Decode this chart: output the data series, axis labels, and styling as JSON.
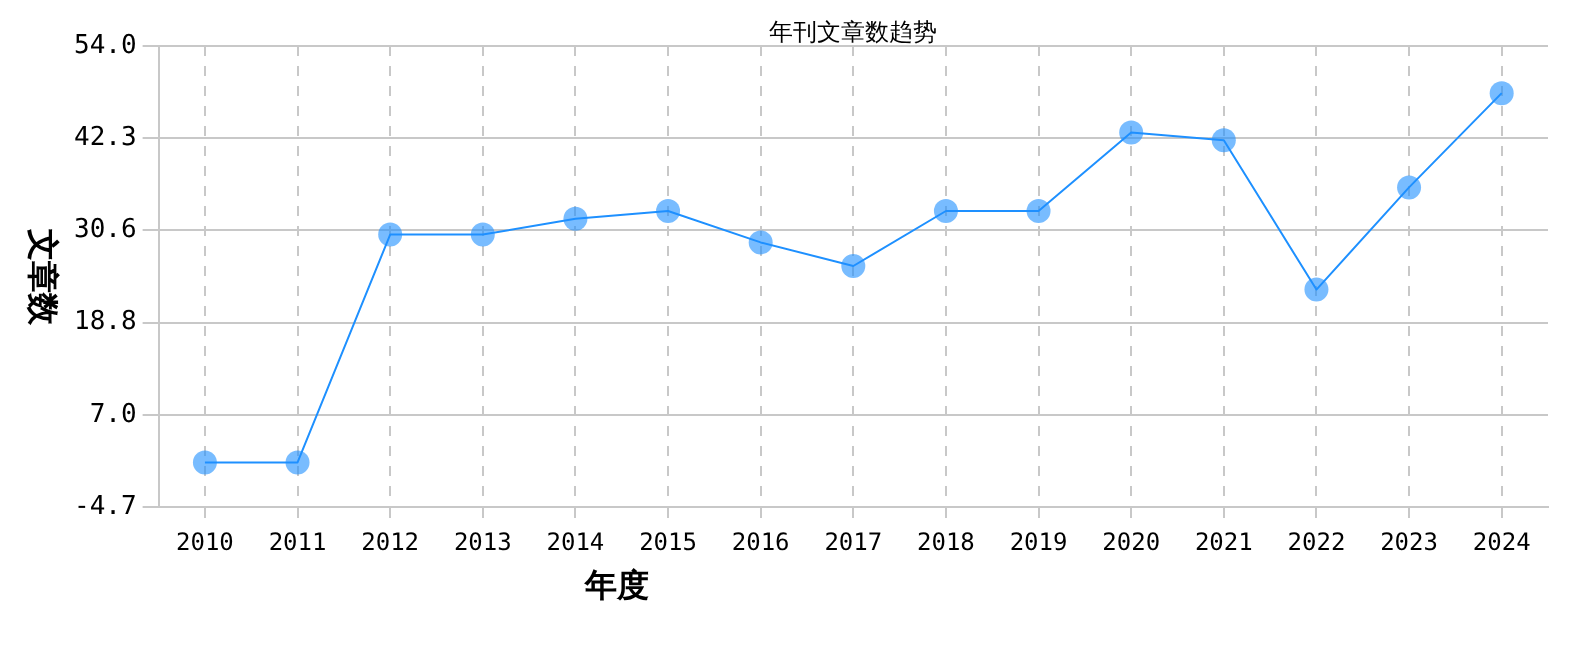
{
  "chart_data": {
    "type": "line",
    "title": "年刊文章数趋势",
    "xlabel": "年度",
    "ylabel": "文章数",
    "categories": [
      "2010",
      "2011",
      "2012",
      "2013",
      "2014",
      "2015",
      "2016",
      "2017",
      "2018",
      "2019",
      "2020",
      "2021",
      "2022",
      "2023",
      "2024"
    ],
    "series": [
      {
        "color": "#1e90ff",
        "values": [
          1,
          1,
          30,
          30,
          32,
          33,
          29,
          26,
          33,
          33,
          43,
          42,
          23,
          36,
          48
        ]
      }
    ],
    "ylim": [
      -4.7,
      54.0
    ],
    "yticks": [
      {
        "value": -4.7,
        "label": "-4.7"
      },
      {
        "value": 7,
        "label": "7.0"
      },
      {
        "value": 18.8,
        "label": "18.8"
      },
      {
        "value": 30.6,
        "label": "30.6"
      },
      {
        "value": 42.3,
        "label": "42.3"
      },
      {
        "value": 54,
        "label": "54.0"
      }
    ],
    "grid": true,
    "marker": "circle",
    "line_style": "solid"
  }
}
